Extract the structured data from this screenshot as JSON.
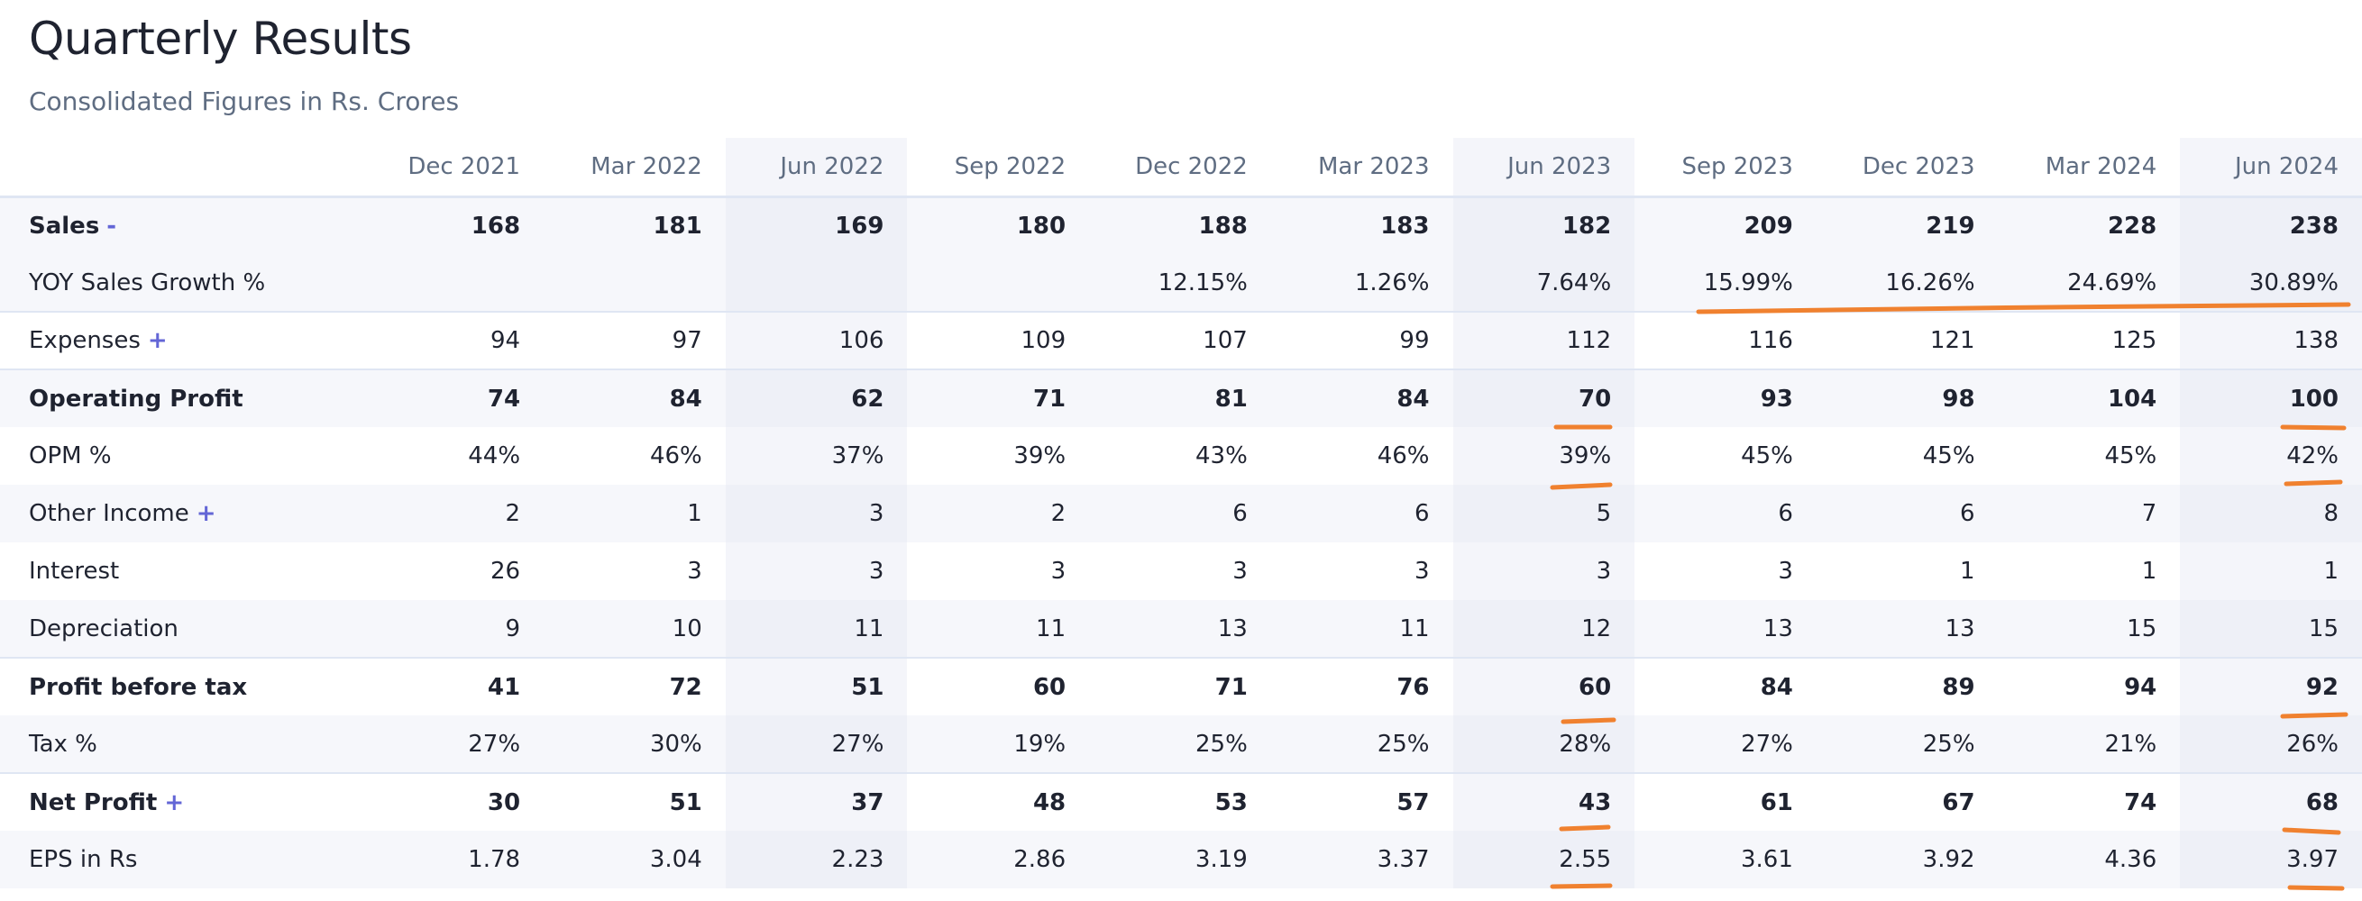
{
  "title": "Quarterly Results",
  "subtitle": "Consolidated Figures in Rs. Crores",
  "annotation_color": "#f0812f",
  "accent_color": "#6366d6",
  "columns": [
    "Dec 2021",
    "Mar 2022",
    "Jun 2022",
    "Sep 2022",
    "Dec 2022",
    "Mar 2023",
    "Jun 2023",
    "Sep 2023",
    "Dec 2023",
    "Mar 2024",
    "Jun 2024"
  ],
  "rows": [
    {
      "label": "Sales",
      "toggle": "-",
      "values": [
        "168",
        "181",
        "169",
        "180",
        "188",
        "183",
        "182",
        "209",
        "219",
        "228",
        "238"
      ]
    },
    {
      "label": "YOY Sales Growth %",
      "toggle": "",
      "values": [
        "",
        "",
        "",
        "",
        "12.15%",
        "1.26%",
        "7.64%",
        "15.99%",
        "16.26%",
        "24.69%",
        "30.89%"
      ]
    },
    {
      "label": "Expenses",
      "toggle": "+",
      "values": [
        "94",
        "97",
        "106",
        "109",
        "107",
        "99",
        "112",
        "116",
        "121",
        "125",
        "138"
      ]
    },
    {
      "label": "Operating Profit",
      "toggle": "",
      "values": [
        "74",
        "84",
        "62",
        "71",
        "81",
        "84",
        "70",
        "93",
        "98",
        "104",
        "100"
      ]
    },
    {
      "label": "OPM %",
      "toggle": "",
      "values": [
        "44%",
        "46%",
        "37%",
        "39%",
        "43%",
        "46%",
        "39%",
        "45%",
        "45%",
        "45%",
        "42%"
      ]
    },
    {
      "label": "Other Income",
      "toggle": "+",
      "values": [
        "2",
        "1",
        "3",
        "2",
        "6",
        "6",
        "5",
        "6",
        "6",
        "7",
        "8"
      ]
    },
    {
      "label": "Interest",
      "toggle": "",
      "values": [
        "26",
        "3",
        "3",
        "3",
        "3",
        "3",
        "3",
        "3",
        "1",
        "1",
        "1"
      ]
    },
    {
      "label": "Depreciation",
      "toggle": "",
      "values": [
        "9",
        "10",
        "11",
        "11",
        "13",
        "11",
        "12",
        "13",
        "13",
        "15",
        "15"
      ]
    },
    {
      "label": "Profit before tax",
      "toggle": "",
      "values": [
        "41",
        "72",
        "51",
        "60",
        "71",
        "76",
        "60",
        "84",
        "89",
        "94",
        "92"
      ]
    },
    {
      "label": "Tax %",
      "toggle": "",
      "values": [
        "27%",
        "30%",
        "27%",
        "19%",
        "25%",
        "25%",
        "28%",
        "27%",
        "25%",
        "21%",
        "26%"
      ]
    },
    {
      "label": "Net Profit",
      "toggle": "+",
      "values": [
        "30",
        "51",
        "37",
        "48",
        "53",
        "57",
        "43",
        "61",
        "67",
        "74",
        "68"
      ]
    },
    {
      "label": "EPS in Rs",
      "toggle": "",
      "values": [
        "1.78",
        "3.04",
        "2.23",
        "2.86",
        "3.19",
        "3.37",
        "2.55",
        "3.61",
        "3.92",
        "4.36",
        "3.97"
      ]
    }
  ]
}
